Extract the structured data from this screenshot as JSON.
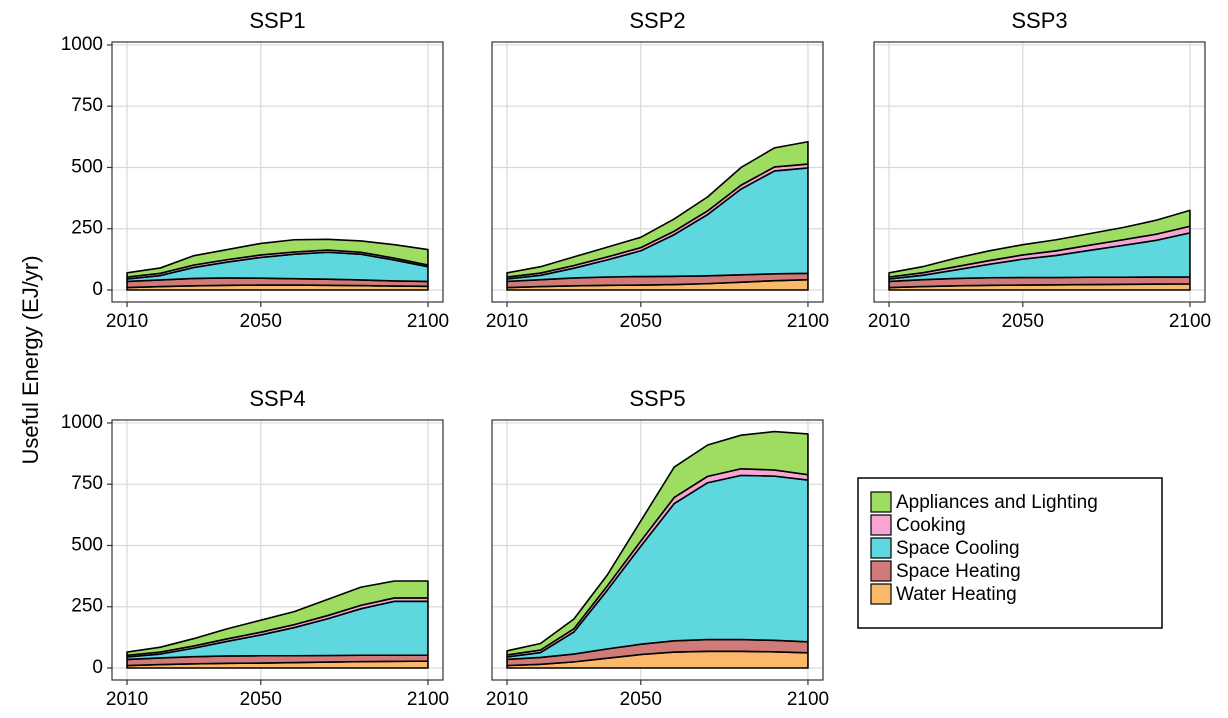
{
  "chart_data": {
    "type": "area",
    "y_label": "Useful Energy (EJ/yr)",
    "x": [
      2010,
      2020,
      2030,
      2040,
      2050,
      2060,
      2070,
      2080,
      2090,
      2100
    ],
    "xlim": [
      2005.5,
      2104.5
    ],
    "xticks": [
      2010,
      2050,
      2100
    ],
    "ylim": [
      -49,
      1012
    ],
    "yticks": [
      0,
      250,
      500,
      750,
      1000
    ],
    "grid": true,
    "legend_position": "right",
    "legend": [
      {
        "name": "Appliances and Lighting",
        "color": "#9edc62"
      },
      {
        "name": "Cooking",
        "color": "#f7a6d4"
      },
      {
        "name": "Space Cooling",
        "color": "#5fd7de"
      },
      {
        "name": "Space Heating",
        "color": "#d07b79"
      },
      {
        "name": "Water Heating",
        "color": "#f9b86a"
      }
    ],
    "panels": [
      {
        "title": "SSP1",
        "series": [
          {
            "values": [
              17,
              22,
              38,
              41,
              47,
              50,
              44,
              46,
              55,
              63
            ]
          },
          {
            "values": [
              8,
              9,
              10,
              10,
              10,
              9,
              9,
              8,
              8,
              7
            ]
          },
          {
            "values": [
              10,
              18,
              45,
              65,
              85,
              100,
              110,
              105,
              85,
              60
            ]
          },
          {
            "values": [
              25,
              27,
              30,
              30,
              28,
              26,
              25,
              23,
              21,
              20
            ]
          },
          {
            "values": [
              10,
              14,
              17,
              19,
              20,
              20,
              19,
              18,
              16,
              15
            ]
          }
        ]
      },
      {
        "title": "SSP2",
        "series": [
          {
            "values": [
              17,
              26,
              35,
              40,
              42,
              50,
              57,
              72,
              78,
              91
            ]
          },
          {
            "values": [
              8,
              9,
              11,
              12,
              13,
              14,
              15,
              16,
              16,
              16
            ]
          },
          {
            "values": [
              10,
              18,
              40,
              70,
              105,
              170,
              250,
              350,
              420,
              430
            ]
          },
          {
            "values": [
              25,
              28,
              32,
              34,
              35,
              34,
              32,
              30,
              28,
              26
            ]
          },
          {
            "values": [
              10,
              14,
              17,
              19,
              20,
              22,
              26,
              32,
              38,
              42
            ]
          }
        ]
      },
      {
        "title": "SSP3",
        "series": [
          {
            "values": [
              17,
              25,
              35,
              40,
              42,
              45,
              47,
              50,
              57,
              65
            ]
          },
          {
            "values": [
              8,
              10,
              13,
              15,
              17,
              19,
              21,
              23,
              25,
              27
            ]
          },
          {
            "values": [
              10,
              18,
              35,
              55,
              75,
              90,
              110,
              130,
              150,
              180
            ]
          },
          {
            "values": [
              25,
              28,
              30,
              31,
              31,
              30,
              30,
              29,
              29,
              28
            ]
          },
          {
            "values": [
              10,
              14,
              17,
              19,
              20,
              21,
              22,
              23,
              24,
              25
            ]
          }
        ]
      },
      {
        "title": "SSP4",
        "series": [
          {
            "values": [
              13,
              20,
              30,
              41,
              49,
              53,
              66,
              74,
              69,
              69
            ]
          },
          {
            "values": [
              7,
              8,
              9,
              10,
              11,
              12,
              13,
              14,
              14,
              14
            ]
          },
          {
            "values": [
              10,
              16,
              35,
              60,
              85,
              115,
              150,
              190,
              220,
              220
            ]
          },
          {
            "values": [
              25,
              27,
              29,
              30,
              30,
              28,
              27,
              26,
              25,
              24
            ]
          },
          {
            "values": [
              10,
              14,
              17,
              19,
              20,
              22,
              24,
              26,
              27,
              28
            ]
          }
        ]
      },
      {
        "title": "SSP5",
        "series": [
          {
            "values": [
              17,
              27,
              40,
              45,
              82,
              124,
              128,
              137,
              157,
              166
            ]
          },
          {
            "values": [
              8,
              10,
              13,
              17,
              21,
              25,
              26,
              27,
              25,
              22
            ]
          },
          {
            "values": [
              10,
              20,
              90,
              240,
              400,
              560,
              640,
              670,
              670,
              660
            ]
          },
          {
            "values": [
              25,
              28,
              32,
              38,
              42,
              46,
              48,
              48,
              47,
              45
            ]
          },
          {
            "values": [
              10,
              15,
              25,
              40,
              55,
              65,
              68,
              68,
              66,
              62
            ]
          }
        ]
      }
    ]
  }
}
